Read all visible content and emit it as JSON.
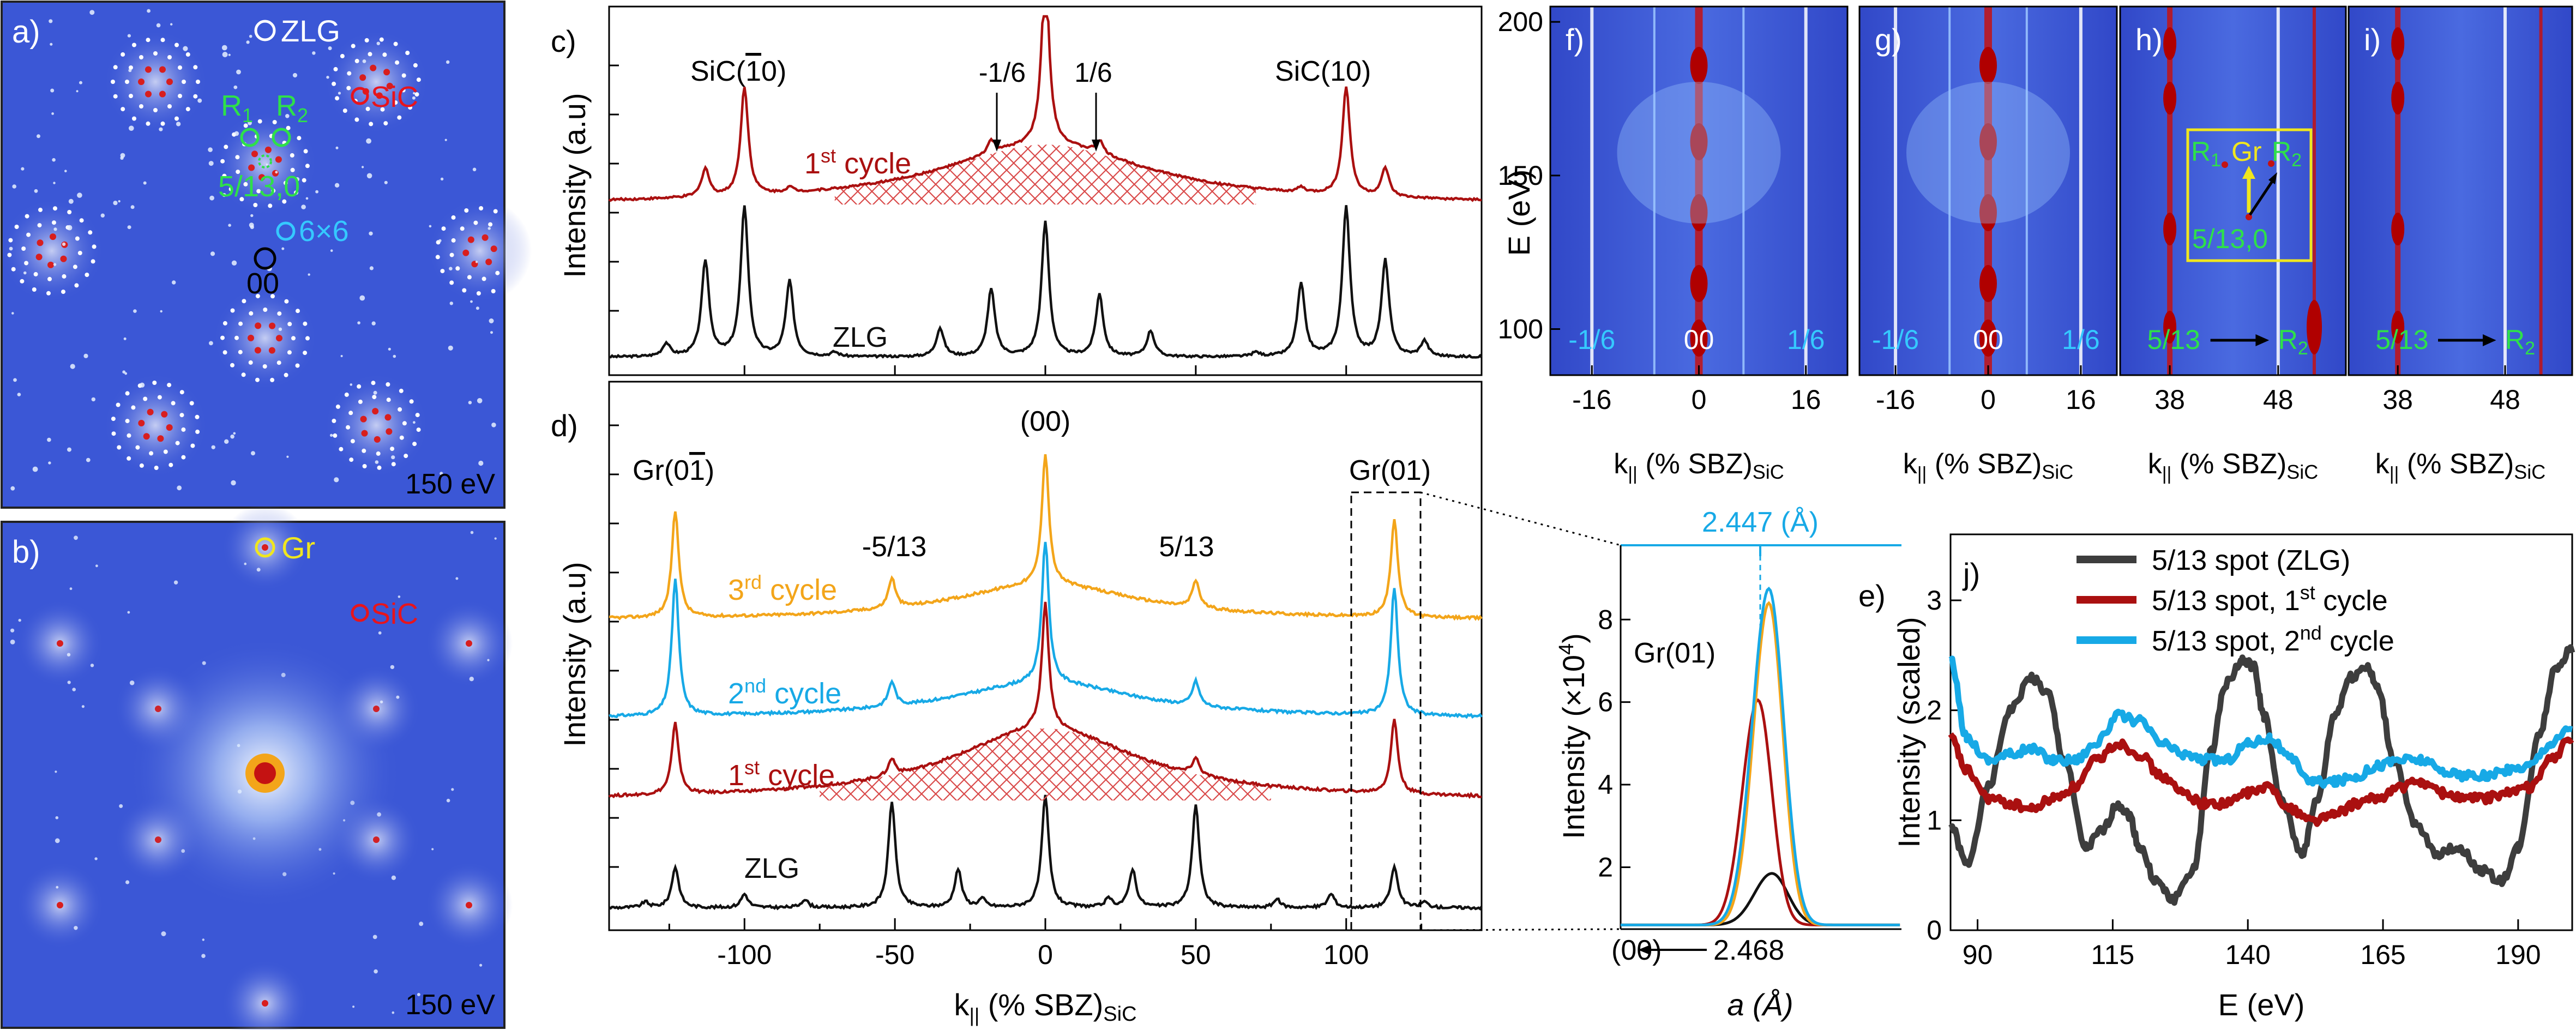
{
  "colors": {
    "black": "#111111",
    "dark_red": "#aa1010",
    "cyan": "#17a9e6",
    "orange": "#f3a51a",
    "green": "#2ee04a",
    "yellow": "#f0e61e",
    "leed_bg": "#3b57d6",
    "hatch": "#d94a4a",
    "spot_cyan": "#35c9ff"
  },
  "panel_a": {
    "label": "a)",
    "energy": "150 eV",
    "annotations": {
      "zlg": "ZLG",
      "sic": "SiC",
      "r1": "R",
      "r1_sub": "1",
      "r2": "R",
      "r2_sub": "2",
      "frac": "5/13,0",
      "six": "6×6",
      "origin": "00"
    }
  },
  "panel_b": {
    "label": "b)",
    "energy": "150 eV",
    "annotations": {
      "gr": "Gr",
      "sic": "SiC"
    }
  },
  "chart_data": [
    {
      "id": "c",
      "label": "c)",
      "type": "line",
      "ylabel": "Intensity (a.u)",
      "xlim": [
        -145,
        145
      ],
      "series": [
        {
          "name": "1st cycle",
          "name_base": "1",
          "name_sup": "st",
          "name_tail": " cycle",
          "color": "#aa1010",
          "baseline": 0.4,
          "broad": 0.55,
          "peaks": [
            [
              -113,
              0.55
            ],
            [
              -100,
              2.1
            ],
            [
              -85,
              0.1
            ],
            [
              -18,
              0.25
            ],
            [
              0,
              3.4
            ],
            [
              18,
              0.25
            ],
            [
              85,
              0.1
            ],
            [
              100,
              2.1
            ],
            [
              113,
              0.55
            ]
          ]
        },
        {
          "name": "ZLG",
          "color": "#111111",
          "baseline": 0.0,
          "broad": 0.0,
          "peaks": [
            [
              -126,
              0.25
            ],
            [
              -113,
              1.85
            ],
            [
              -100,
              2.9
            ],
            [
              -85,
              1.45
            ],
            [
              -70,
              0.08
            ],
            [
              -35,
              0.55
            ],
            [
              -18,
              1.3
            ],
            [
              0,
              2.6
            ],
            [
              18,
              1.2
            ],
            [
              35,
              0.5
            ],
            [
              70,
              0.08
            ],
            [
              85,
              1.4
            ],
            [
              100,
              2.9
            ],
            [
              113,
              1.85
            ],
            [
              126,
              0.3
            ]
          ]
        }
      ],
      "annotations": {
        "sic_m10": "SiC(",
        "sic_m10_bar": "1",
        "sic_m10_tail": "0)",
        "m16": "-1/6",
        "p16": "1/6",
        "sic10": "SiC(10)"
      }
    },
    {
      "id": "d",
      "label": "d)",
      "type": "line",
      "xlabel": "k",
      "xlabel_sub": "||",
      "xlabel_tail": " (% SBZ)",
      "xlabel_sub2": "SiC",
      "ylabel": "Intensity (a.u)",
      "xlim": [
        -145,
        145
      ],
      "xticks": [
        -100,
        -50,
        0,
        50,
        100
      ],
      "series": [
        {
          "name": "3rd cycle",
          "name_base": "3",
          "name_sup": "rd",
          "name_tail": " cycle",
          "color": "#f3a51a",
          "baseline": 2.4,
          "broad": 0.3,
          "peaks": [
            [
              -123,
              1.95
            ],
            [
              -51,
              0.55
            ],
            [
              0,
              2.4
            ],
            [
              50,
              0.5
            ],
            [
              116,
              1.8
            ]
          ]
        },
        {
          "name": "2nd cycle",
          "name_base": "2",
          "name_sup": "nd",
          "name_tail": " cycle",
          "color": "#17a9e6",
          "baseline": 1.28,
          "broad": 0.3,
          "peaks": [
            [
              -123,
              2.5
            ],
            [
              -51,
              0.45
            ],
            [
              0,
              2.6
            ],
            [
              50,
              0.45
            ],
            [
              116,
              2.35
            ]
          ]
        },
        {
          "name": "1st cycle",
          "name_base": "1",
          "name_sup": "st",
          "name_tail": " cycle",
          "color": "#aa1010",
          "baseline": 0.4,
          "broad": 0.6,
          "peaks": [
            [
              -123,
              1.3
            ],
            [
              -51,
              0.3
            ],
            [
              0,
              2.3
            ],
            [
              50,
              0.3
            ],
            [
              116,
              1.35
            ]
          ]
        },
        {
          "name": "ZLG",
          "color": "#111111",
          "baseline": 0.0,
          "broad": 0.0,
          "peaks": [
            [
              -133,
              0.1
            ],
            [
              -123,
              0.75
            ],
            [
              -100,
              0.25
            ],
            [
              -80,
              0.15
            ],
            [
              -51,
              1.95
            ],
            [
              -29,
              0.7
            ],
            [
              -21,
              0.15
            ],
            [
              0,
              2.05
            ],
            [
              21,
              0.15
            ],
            [
              29,
              0.7
            ],
            [
              50,
              1.9
            ],
            [
              77,
              0.15
            ],
            [
              95,
              0.25
            ],
            [
              116,
              0.75
            ],
            [
              126,
              0.1
            ]
          ]
        }
      ],
      "annotations": {
        "gr_m": "Gr(0",
        "gr_m_bar": "1",
        "gr_m_tail": ")",
        "p00": "(00)",
        "m513": "-5/13",
        "p513": "5/13",
        "gr01": "Gr(01)"
      }
    },
    {
      "id": "e",
      "label": "e)",
      "type": "line",
      "xlabel": "a (Å)",
      "ylabel": "Intensity (×10",
      "ylabel_sup": "4",
      "ylabel_tail": ")",
      "ylim": [
        0.5,
        9.8
      ],
      "yticks": [
        2,
        4,
        6,
        8
      ],
      "xlim": [
        2.4375,
        2.4555
      ],
      "top_tick_label": "2.447 (Å)",
      "bottom_value": "2.468",
      "bottom_origin": "(00)",
      "series": [
        {
          "name": "ZLG",
          "color": "#111111",
          "center": 2.4472,
          "amp": 1.25,
          "width": 0.0016
        },
        {
          "name": "1st cycle",
          "color": "#aa1010",
          "center": 2.4463,
          "amp": 5.45,
          "width": 0.0014
        },
        {
          "name": "3rd cycle",
          "color": "#f3a51a",
          "center": 2.447,
          "amp": 7.8,
          "width": 0.0014
        },
        {
          "name": "2nd cycle",
          "color": "#17a9e6",
          "center": 2.447,
          "amp": 8.15,
          "width": 0.0015
        }
      ],
      "annotations": {
        "gr01": "Gr(01)"
      }
    },
    {
      "id": "f-i",
      "type": "heatmap",
      "ylabel": "E (eV)",
      "ylim": [
        85,
        205
      ],
      "yticks": [
        100,
        150,
        200
      ],
      "xlabel": "k",
      "xlabel_sub": "||",
      "xlabel_tail": " (% SBZ)",
      "xlabel_sub2": "SiC",
      "panels": [
        {
          "label": "f)",
          "xticks": [
            "-16",
            "0",
            "16"
          ],
          "tags": [
            "-1/6",
            "00",
            "1/6"
          ]
        },
        {
          "label": "g)",
          "xticks": [
            "-16",
            "0",
            "16"
          ],
          "tags": [
            "-1/6",
            "00",
            "1/6"
          ]
        },
        {
          "label": "h)",
          "xticks": [
            "38",
            "48"
          ],
          "tags": [
            "5/13",
            "R",
            "2"
          ],
          "inset": {
            "r1": "R",
            "r1_sub": "1",
            "gr": "Gr",
            "r2": "R",
            "r2_sub": "2",
            "frac": "5/13,0"
          }
        },
        {
          "label": "i)",
          "xticks": [
            "38",
            "48"
          ],
          "tags": [
            "5/13",
            "R",
            "2"
          ]
        }
      ]
    },
    {
      "id": "j",
      "label": "j)",
      "type": "line",
      "xlabel": "E (eV)",
      "ylabel": "Intensity (scaled)",
      "xlim": [
        85,
        200
      ],
      "ylim": [
        0,
        3.6
      ],
      "xticks": [
        90,
        115,
        140,
        165,
        190
      ],
      "yticks": [
        0,
        1,
        2,
        3
      ],
      "legend_position": "top-right",
      "series": [
        {
          "name": "5/13 spot (ZLG)",
          "color": "#3d3d3d",
          "x": [
            85,
            88,
            92,
            96,
            100,
            103,
            106,
            110,
            113,
            116,
            118,
            120,
            123,
            126,
            130,
            133,
            136,
            139,
            141,
            143,
            146,
            150,
            153,
            156,
            159,
            162,
            164,
            167,
            171,
            175,
            179,
            183,
            187,
            190,
            194,
            197,
            200
          ],
          "y": [
            0.95,
            0.6,
            1.3,
            2.0,
            2.3,
            2.15,
            1.55,
            0.75,
            0.9,
            1.15,
            1.05,
            0.75,
            0.45,
            0.28,
            0.55,
            1.6,
            2.25,
            2.45,
            2.4,
            1.95,
            1.2,
            0.7,
            1.2,
            1.95,
            2.3,
            2.4,
            2.2,
            1.55,
            0.95,
            0.7,
            0.75,
            0.55,
            0.45,
            0.75,
            1.8,
            2.4,
            2.55
          ]
        },
        {
          "name": "5/13 spot, 1st cycle",
          "name_base": "5/13 spot, 1",
          "name_sup": "st",
          "name_tail": " cycle",
          "color": "#aa1010",
          "x": [
            85,
            88,
            92,
            96,
            100,
            104,
            108,
            112,
            116,
            120,
            124,
            128,
            132,
            136,
            140,
            144,
            148,
            152,
            156,
            160,
            164,
            168,
            172,
            176,
            180,
            184,
            188,
            192,
            196,
            200
          ],
          "y": [
            1.75,
            1.45,
            1.2,
            1.15,
            1.1,
            1.2,
            1.3,
            1.55,
            1.7,
            1.6,
            1.4,
            1.25,
            1.15,
            1.15,
            1.25,
            1.3,
            1.1,
            1.0,
            1.05,
            1.15,
            1.2,
            1.3,
            1.35,
            1.25,
            1.2,
            1.2,
            1.25,
            1.3,
            1.55,
            1.75
          ]
        },
        {
          "name": "5/13 spot, 2nd cycle",
          "name_base": "5/13 spot, 2",
          "name_sup": "nd",
          "name_tail": " cycle",
          "color": "#17a9e6",
          "x": [
            85,
            88,
            92,
            96,
            100,
            104,
            108,
            112,
            116,
            120,
            124,
            128,
            132,
            136,
            140,
            144,
            148,
            152,
            156,
            160,
            164,
            168,
            172,
            176,
            180,
            184,
            188,
            192,
            196,
            200
          ],
          "y": [
            2.45,
            1.75,
            1.55,
            1.6,
            1.65,
            1.55,
            1.55,
            1.7,
            1.95,
            1.9,
            1.7,
            1.6,
            1.55,
            1.55,
            1.7,
            1.75,
            1.55,
            1.35,
            1.35,
            1.4,
            1.5,
            1.55,
            1.55,
            1.45,
            1.4,
            1.4,
            1.45,
            1.5,
            1.7,
            1.85
          ]
        }
      ]
    }
  ]
}
